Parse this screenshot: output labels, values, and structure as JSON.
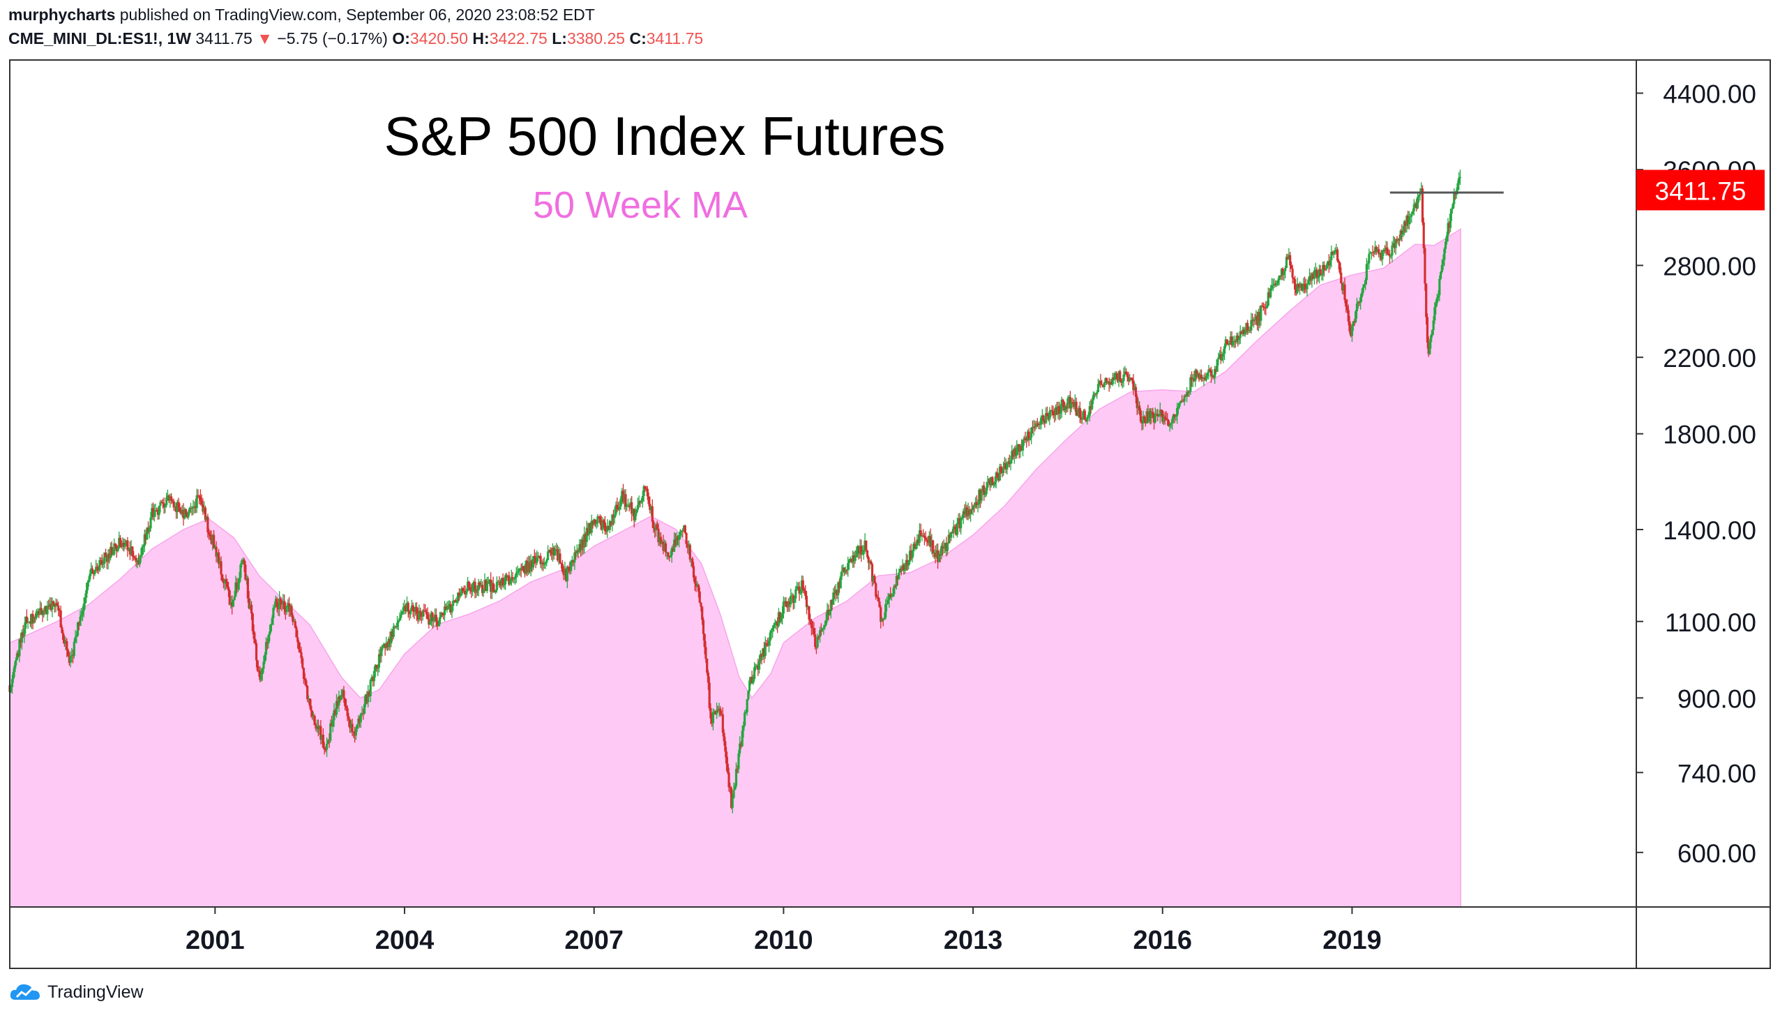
{
  "header": {
    "author": "murphycharts",
    "published_text": "published on TradingView.com, September 06, 2020 23:08:52 EDT",
    "symbol": "CME_MINI_DL:ES1!, 1W",
    "last": "3411.75",
    "change": "−5.75 (−0.17%)",
    "open_label": "O:",
    "open": "3420.50",
    "high_label": "H:",
    "high": "3422.75",
    "low_label": "L:",
    "low": "3380.25",
    "close_label": "C:",
    "close": "3411.75"
  },
  "footer": {
    "brand": "TradingView"
  },
  "colors": {
    "up": "#26a641",
    "down": "#d32f2f",
    "ma_fill": "#ffc9f5",
    "ma_line": "#f7a6ea",
    "subtitle": "#f06ee0",
    "price_tag": "#ff0000",
    "resistance": "#555555"
  },
  "chart_data": {
    "type": "candlestick",
    "title": "S&P 500 Index Futures",
    "subtitle": "50 Week MA",
    "timeframe": "1W",
    "y_scale": "log",
    "ylim": [
      520,
      4800
    ],
    "xlim": [
      1997.75,
      2023.5
    ],
    "y_ticks": [
      "4400.00",
      "3600.00",
      "2800.00",
      "2200.00",
      "1800.00",
      "1400.00",
      "1100.00",
      "900.00",
      "740.00",
      "600.00"
    ],
    "x_ticks": [
      "2001",
      "2004",
      "2007",
      "2010",
      "2013",
      "2016",
      "2019"
    ],
    "last_price": "3411.75",
    "resistance_level": 3390,
    "resistance_range": [
      2019.6,
      2021.4
    ],
    "price_path": [
      [
        1997.75,
        930
      ],
      [
        1998.0,
        1100
      ],
      [
        1998.5,
        1150
      ],
      [
        1998.7,
        980
      ],
      [
        1999.0,
        1240
      ],
      [
        1999.5,
        1360
      ],
      [
        1999.8,
        1290
      ],
      [
        2000.0,
        1460
      ],
      [
        2000.3,
        1520
      ],
      [
        2000.5,
        1450
      ],
      [
        2000.75,
        1520
      ],
      [
        2001.0,
        1330
      ],
      [
        2001.25,
        1150
      ],
      [
        2001.45,
        1290
      ],
      [
        2001.7,
        950
      ],
      [
        2001.95,
        1160
      ],
      [
        2002.2,
        1130
      ],
      [
        2002.5,
        880
      ],
      [
        2002.75,
        790
      ],
      [
        2003.0,
        920
      ],
      [
        2003.2,
        810
      ],
      [
        2003.6,
        1000
      ],
      [
        2004.0,
        1140
      ],
      [
        2004.5,
        1100
      ],
      [
        2005.0,
        1200
      ],
      [
        2005.5,
        1210
      ],
      [
        2006.0,
        1280
      ],
      [
        2006.4,
        1320
      ],
      [
        2006.55,
        1240
      ],
      [
        2007.0,
        1440
      ],
      [
        2007.2,
        1400
      ],
      [
        2007.45,
        1530
      ],
      [
        2007.65,
        1450
      ],
      [
        2007.8,
        1560
      ],
      [
        2008.0,
        1380
      ],
      [
        2008.2,
        1300
      ],
      [
        2008.4,
        1420
      ],
      [
        2008.7,
        1150
      ],
      [
        2008.85,
        850
      ],
      [
        2009.0,
        870
      ],
      [
        2009.18,
        680
      ],
      [
        2009.45,
        930
      ],
      [
        2010.0,
        1140
      ],
      [
        2010.3,
        1210
      ],
      [
        2010.5,
        1030
      ],
      [
        2011.0,
        1280
      ],
      [
        2011.3,
        1350
      ],
      [
        2011.55,
        1100
      ],
      [
        2011.8,
        1230
      ],
      [
        2012.2,
        1400
      ],
      [
        2012.45,
        1300
      ],
      [
        2012.8,
        1430
      ],
      [
        2013.0,
        1500
      ],
      [
        2013.5,
        1650
      ],
      [
        2014.0,
        1840
      ],
      [
        2014.5,
        1960
      ],
      [
        2014.8,
        1870
      ],
      [
        2015.0,
        2060
      ],
      [
        2015.5,
        2100
      ],
      [
        2015.65,
        1880
      ],
      [
        2016.0,
        1890
      ],
      [
        2016.1,
        1820
      ],
      [
        2016.5,
        2100
      ],
      [
        2016.8,
        2110
      ],
      [
        2017.0,
        2270
      ],
      [
        2017.5,
        2430
      ],
      [
        2018.0,
        2850
      ],
      [
        2018.1,
        2620
      ],
      [
        2018.5,
        2750
      ],
      [
        2018.75,
        2920
      ],
      [
        2018.98,
        2350
      ],
      [
        2019.3,
        2900
      ],
      [
        2019.6,
        2880
      ],
      [
        2019.8,
        3080
      ],
      [
        2020.1,
        3380
      ],
      [
        2020.2,
        2200
      ],
      [
        2020.5,
        3050
      ],
      [
        2020.7,
        3550
      ],
      [
        2020.72,
        3412
      ]
    ],
    "ma_path": [
      [
        1997.75,
        1040
      ],
      [
        1998.5,
        1100
      ],
      [
        1999.0,
        1150
      ],
      [
        1999.5,
        1230
      ],
      [
        2000.0,
        1330
      ],
      [
        2000.5,
        1400
      ],
      [
        2000.9,
        1440
      ],
      [
        2001.3,
        1370
      ],
      [
        2001.7,
        1240
      ],
      [
        2002.0,
        1180
      ],
      [
        2002.5,
        1090
      ],
      [
        2003.0,
        950
      ],
      [
        2003.3,
        900
      ],
      [
        2003.6,
        920
      ],
      [
        2004.0,
        1010
      ],
      [
        2004.5,
        1090
      ],
      [
        2005.0,
        1120
      ],
      [
        2005.5,
        1160
      ],
      [
        2006.0,
        1220
      ],
      [
        2006.5,
        1260
      ],
      [
        2007.0,
        1340
      ],
      [
        2007.5,
        1400
      ],
      [
        2007.9,
        1450
      ],
      [
        2008.3,
        1400
      ],
      [
        2008.7,
        1280
      ],
      [
        2009.0,
        1120
      ],
      [
        2009.3,
        950
      ],
      [
        2009.5,
        900
      ],
      [
        2009.8,
        960
      ],
      [
        2010.0,
        1040
      ],
      [
        2010.5,
        1110
      ],
      [
        2011.0,
        1160
      ],
      [
        2011.5,
        1240
      ],
      [
        2012.0,
        1250
      ],
      [
        2012.5,
        1300
      ],
      [
        2013.0,
        1380
      ],
      [
        2013.5,
        1490
      ],
      [
        2014.0,
        1640
      ],
      [
        2014.5,
        1780
      ],
      [
        2015.0,
        1920
      ],
      [
        2015.5,
        2010
      ],
      [
        2016.0,
        2020
      ],
      [
        2016.5,
        2010
      ],
      [
        2017.0,
        2120
      ],
      [
        2017.5,
        2300
      ],
      [
        2018.0,
        2480
      ],
      [
        2018.5,
        2660
      ],
      [
        2019.0,
        2730
      ],
      [
        2019.5,
        2780
      ],
      [
        2020.0,
        2960
      ],
      [
        2020.3,
        2950
      ],
      [
        2020.72,
        3080
      ]
    ]
  }
}
